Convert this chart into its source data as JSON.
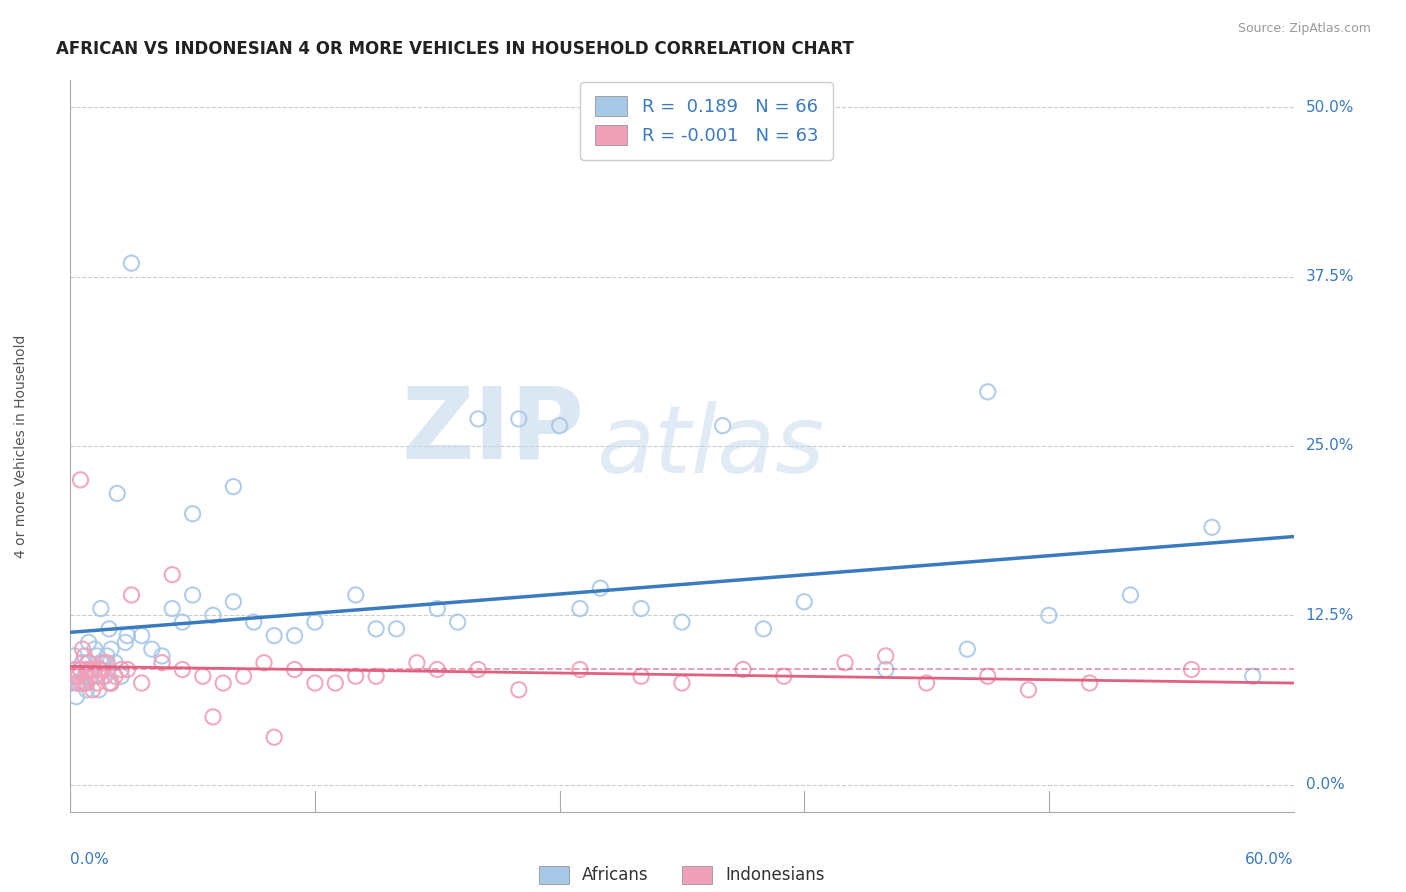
{
  "title": "AFRICAN VS INDONESIAN 4 OR MORE VEHICLES IN HOUSEHOLD CORRELATION CHART",
  "source": "Source: ZipAtlas.com",
  "ylabel": "4 or more Vehicles in Household",
  "ytick_vals": [
    0.0,
    12.5,
    25.0,
    37.5,
    50.0
  ],
  "xlim": [
    0.0,
    60.0
  ],
  "ylim": [
    -2.0,
    52.0
  ],
  "legend_african_r": "R =  0.189",
  "legend_african_n": "N = 66",
  "legend_indonesian_r": "R = -0.001",
  "legend_indonesian_n": "N = 63",
  "african_color": "#a8c8e8",
  "indonesian_color": "#f0a0b8",
  "african_line_color": "#3a7abf",
  "indonesian_line_color": "#e06080",
  "watermark_zip": "ZIP",
  "watermark_atlas": "atlas",
  "african_scatter_x": [
    0.2,
    0.3,
    0.4,
    0.5,
    0.5,
    0.6,
    0.6,
    0.7,
    0.8,
    0.9,
    1.0,
    1.0,
    1.1,
    1.2,
    1.3,
    1.4,
    1.5,
    1.5,
    1.6,
    1.7,
    1.8,
    1.9,
    2.0,
    2.0,
    2.2,
    2.3,
    2.5,
    2.7,
    2.8,
    3.0,
    3.5,
    4.0,
    4.5,
    5.0,
    5.5,
    6.0,
    6.0,
    7.0,
    8.0,
    8.0,
    9.0,
    10.0,
    11.0,
    12.0,
    14.0,
    15.0,
    16.0,
    18.0,
    19.0,
    20.0,
    22.0,
    24.0,
    25.0,
    26.0,
    28.0,
    30.0,
    32.0,
    34.0,
    36.0,
    40.0,
    44.0,
    45.0,
    48.0,
    52.0,
    56.0,
    58.0
  ],
  "african_scatter_y": [
    9.5,
    6.5,
    7.5,
    8.5,
    7.5,
    9.0,
    9.0,
    8.0,
    7.0,
    10.5,
    8.5,
    8.0,
    8.5,
    10.0,
    9.5,
    7.0,
    9.0,
    13.0,
    8.0,
    9.0,
    9.5,
    11.5,
    10.0,
    7.5,
    9.0,
    21.5,
    8.0,
    10.5,
    11.0,
    38.5,
    11.0,
    10.0,
    9.5,
    13.0,
    12.0,
    14.0,
    20.0,
    12.5,
    13.5,
    22.0,
    12.0,
    11.0,
    11.0,
    12.0,
    14.0,
    11.5,
    11.5,
    13.0,
    12.0,
    27.0,
    27.0,
    26.5,
    13.0,
    14.5,
    13.0,
    12.0,
    26.5,
    11.5,
    13.5,
    8.5,
    10.0,
    29.0,
    12.5,
    14.0,
    19.0,
    8.0
  ],
  "indonesian_scatter_x": [
    0.2,
    0.2,
    0.3,
    0.3,
    0.4,
    0.5,
    0.5,
    0.6,
    0.6,
    0.7,
    0.7,
    0.8,
    0.8,
    0.9,
    1.0,
    1.0,
    1.1,
    1.2,
    1.2,
    1.3,
    1.4,
    1.4,
    1.5,
    1.6,
    1.7,
    1.8,
    1.9,
    2.0,
    2.2,
    2.5,
    2.8,
    3.0,
    3.5,
    4.5,
    5.0,
    5.5,
    6.5,
    7.0,
    7.5,
    8.5,
    9.5,
    10.0,
    11.0,
    12.0,
    13.0,
    14.0,
    15.0,
    17.0,
    18.0,
    20.0,
    22.0,
    25.0,
    28.0,
    30.0,
    33.0,
    35.0,
    38.0,
    40.0,
    42.0,
    45.0,
    47.0,
    50.0,
    55.0
  ],
  "indonesian_scatter_y": [
    8.5,
    8.0,
    7.5,
    8.0,
    8.0,
    22.5,
    8.5,
    10.0,
    7.5,
    9.5,
    7.5,
    8.5,
    7.5,
    9.0,
    8.5,
    8.5,
    7.0,
    8.0,
    8.5,
    7.5,
    8.5,
    8.5,
    8.5,
    9.0,
    8.0,
    9.0,
    7.5,
    7.5,
    8.0,
    8.5,
    8.5,
    14.0,
    7.5,
    9.0,
    15.5,
    8.5,
    8.0,
    5.0,
    7.5,
    8.0,
    9.0,
    3.5,
    8.5,
    7.5,
    7.5,
    8.0,
    8.0,
    9.0,
    8.5,
    8.5,
    7.0,
    8.5,
    8.0,
    7.5,
    8.5,
    8.0,
    9.0,
    9.5,
    7.5,
    8.0,
    7.0,
    7.5,
    8.5
  ]
}
